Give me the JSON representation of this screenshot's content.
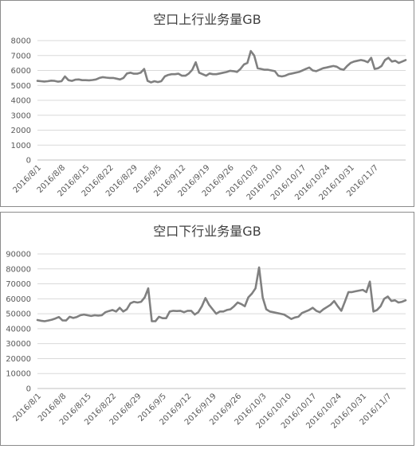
{
  "chart_data": [
    {
      "type": "line",
      "title": "空口上行业务量GB",
      "xlabel": "",
      "ylabel": "",
      "ylim": [
        0,
        8000
      ],
      "yticks": [
        0,
        1000,
        2000,
        3000,
        4000,
        5000,
        6000,
        7000,
        8000
      ],
      "xticks": [
        "2016/8/1",
        "2016/8/8",
        "2016/8/15",
        "2016/8/22",
        "2016/8/29",
        "2016/9/5",
        "2016/9/12",
        "2016/9/19",
        "2016/9/26",
        "2016/10/3",
        "2016/10/10",
        "2016/10/17",
        "2016/10/24",
        "2016/10/31",
        "2016/11/7"
      ],
      "grid": true,
      "series": [
        {
          "color": "#808080",
          "x_start": "2016/8/1",
          "values": [
            5300,
            5280,
            5260,
            5280,
            5320,
            5300,
            5250,
            5280,
            5600,
            5350,
            5300,
            5380,
            5400,
            5350,
            5350,
            5340,
            5360,
            5400,
            5500,
            5550,
            5520,
            5500,
            5500,
            5450,
            5400,
            5500,
            5800,
            5850,
            5780,
            5780,
            5850,
            6100,
            5300,
            5200,
            5280,
            5220,
            5280,
            5600,
            5700,
            5750,
            5750,
            5780,
            5650,
            5650,
            5800,
            6050,
            6550,
            5850,
            5750,
            5650,
            5800,
            5750,
            5750,
            5800,
            5850,
            5900,
            5980,
            5950,
            5900,
            6100,
            6400,
            6500,
            7300,
            7000,
            6150,
            6100,
            6050,
            6050,
            6000,
            5950,
            5650,
            5600,
            5650,
            5750,
            5800,
            5850,
            5900,
            6000,
            6100,
            6200,
            6000,
            5950,
            6050,
            6150,
            6200,
            6250,
            6300,
            6250,
            6100,
            6050,
            6300,
            6500,
            6600,
            6650,
            6700,
            6650,
            6550,
            6850,
            6100,
            6150,
            6300,
            6700,
            6850,
            6600,
            6650,
            6500,
            6600,
            6700
          ]
        }
      ]
    },
    {
      "type": "line",
      "title": "空口下行业务量GB",
      "xlabel": "",
      "ylabel": "",
      "ylim": [
        0,
        90000
      ],
      "yticks": [
        0,
        10000,
        20000,
        30000,
        40000,
        50000,
        60000,
        70000,
        80000,
        90000
      ],
      "xticks": [
        "2016/8/1",
        "2016/8/8",
        "2016/8/15",
        "2016/8/22",
        "2016/8/29",
        "2016/9/5",
        "2016/9/12",
        "2016/9/19",
        "2016/9/26",
        "2016/10/3",
        "2016/10/10",
        "2016/10/17",
        "2016/10/24",
        "2016/10/31",
        "2016/11/7"
      ],
      "grid": true,
      "series": [
        {
          "color": "#808080",
          "x_start": "2016/8/1",
          "values": [
            45800,
            45300,
            45000,
            45500,
            46000,
            46800,
            47800,
            45600,
            45500,
            48000,
            47200,
            47800,
            49000,
            49500,
            49000,
            48500,
            49000,
            48800,
            49000,
            51000,
            51800,
            52500,
            51500,
            54000,
            51500,
            53000,
            57000,
            58000,
            57500,
            58000,
            61000,
            67000,
            45000,
            45000,
            48000,
            47000,
            47000,
            51500,
            52000,
            51800,
            52000,
            51000,
            52000,
            52000,
            49500,
            51000,
            55000,
            60500,
            56000,
            53000,
            50000,
            51500,
            51500,
            52500,
            53000,
            55000,
            57500,
            56500,
            55000,
            61000,
            63500,
            67000,
            81000,
            61000,
            53000,
            51500,
            51000,
            50500,
            50000,
            49500,
            48000,
            46500,
            47500,
            48000,
            50500,
            51500,
            52500,
            54000,
            52000,
            51000,
            53000,
            54500,
            56000,
            58500,
            55000,
            52000,
            58000,
            64500,
            64500,
            65000,
            65500,
            66000,
            64500,
            71500,
            51500,
            52500,
            55000,
            60000,
            61500,
            58500,
            59000,
            57500,
            58000,
            59000
          ]
        }
      ]
    }
  ]
}
